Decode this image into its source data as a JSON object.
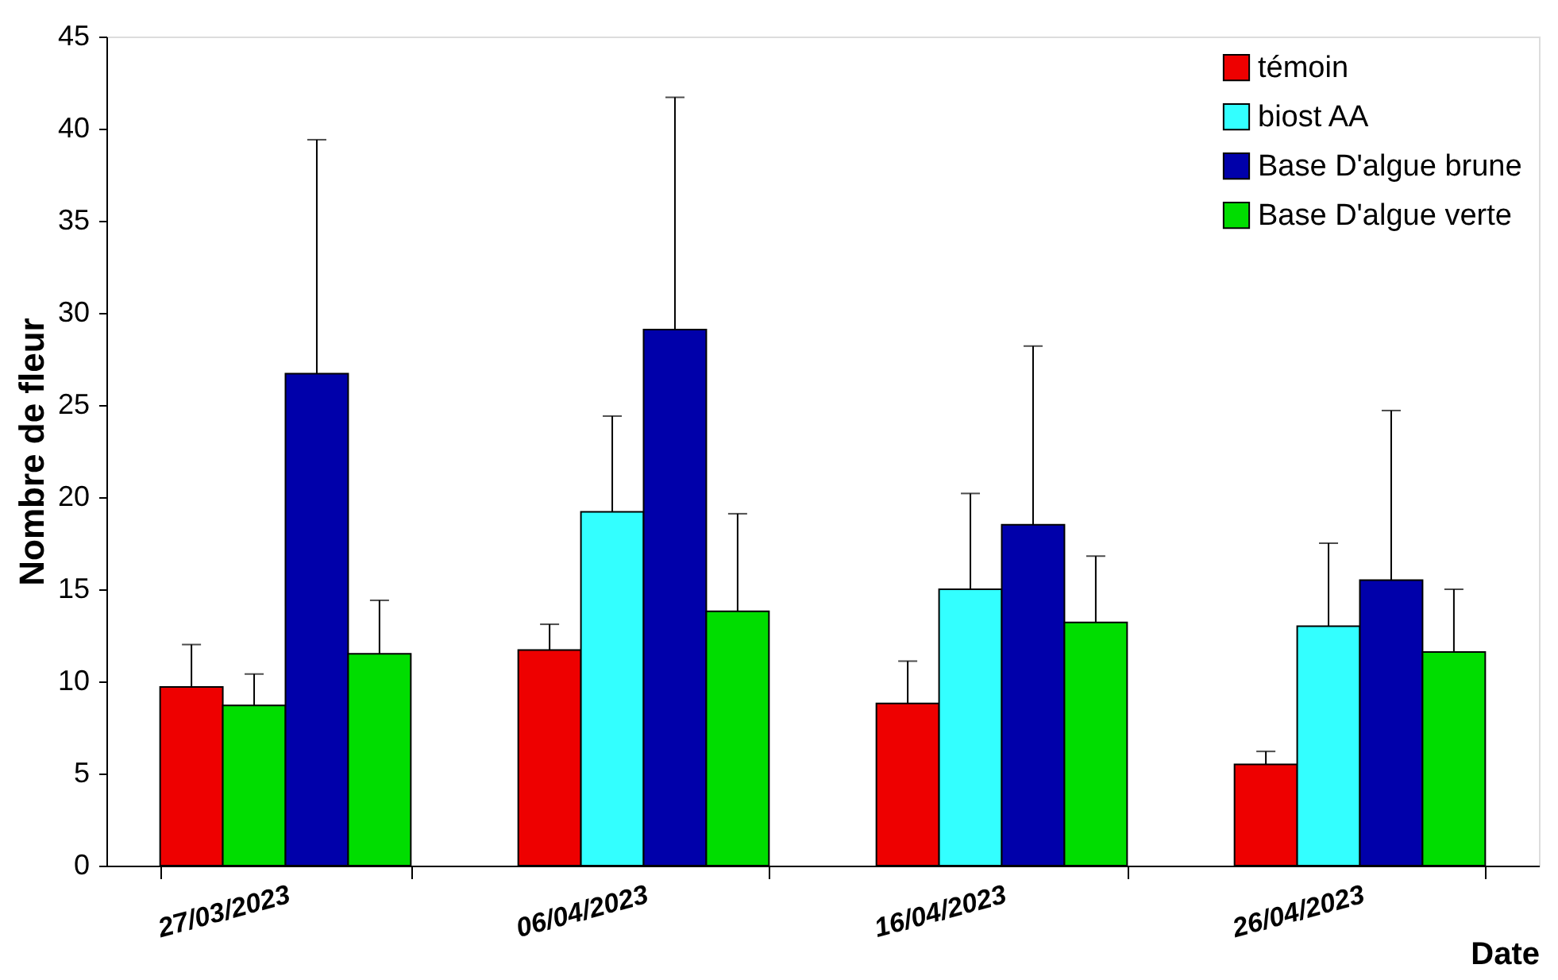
{
  "chart_data": {
    "type": "bar",
    "xlabel": "Date",
    "ylabel": "Nombre de fleur",
    "categories": [
      "27/03/2023",
      "06/04/2023",
      "16/04/2023",
      "26/04/2023"
    ],
    "series": [
      {
        "name": "témoin",
        "color": "#ee0000",
        "values": [
          9.7,
          11.7,
          8.8,
          5.5
        ],
        "errors": [
          [
            9.7,
            12.0
          ],
          [
            11.7,
            13.1
          ],
          [
            8.8,
            11.1
          ],
          [
            5.5,
            6.2
          ]
        ]
      },
      {
        "name": "biost AA",
        "color": "#33ffff",
        "colors": [
          "#00dd00",
          "#33ffff",
          "#33ffff",
          "#33ffff"
        ],
        "values": [
          8.7,
          19.2,
          15.0,
          13.0
        ],
        "errors": [
          [
            8.7,
            10.4
          ],
          [
            19.2,
            24.4
          ],
          [
            15.0,
            20.2
          ],
          [
            13.0,
            17.5
          ]
        ]
      },
      {
        "name": "Base D'algue brune",
        "color": "#0000aa",
        "values": [
          26.7,
          29.1,
          18.5,
          15.5
        ],
        "errors": [
          [
            26.7,
            39.4
          ],
          [
            29.1,
            41.7
          ],
          [
            18.5,
            28.2
          ],
          [
            15.5,
            24.7
          ]
        ]
      },
      {
        "name": "Base D'algue verte",
        "color": "#00dd00",
        "values": [
          11.5,
          13.8,
          13.2,
          11.6
        ],
        "errors": [
          [
            11.5,
            14.4
          ],
          [
            13.8,
            19.1
          ],
          [
            13.2,
            16.8
          ],
          [
            11.6,
            15.0
          ]
        ]
      }
    ],
    "ylim": [
      0,
      45
    ],
    "yticks": [
      0,
      5,
      10,
      15,
      20,
      25,
      30,
      35,
      40,
      45
    ],
    "grid": false,
    "legend": "top right"
  }
}
